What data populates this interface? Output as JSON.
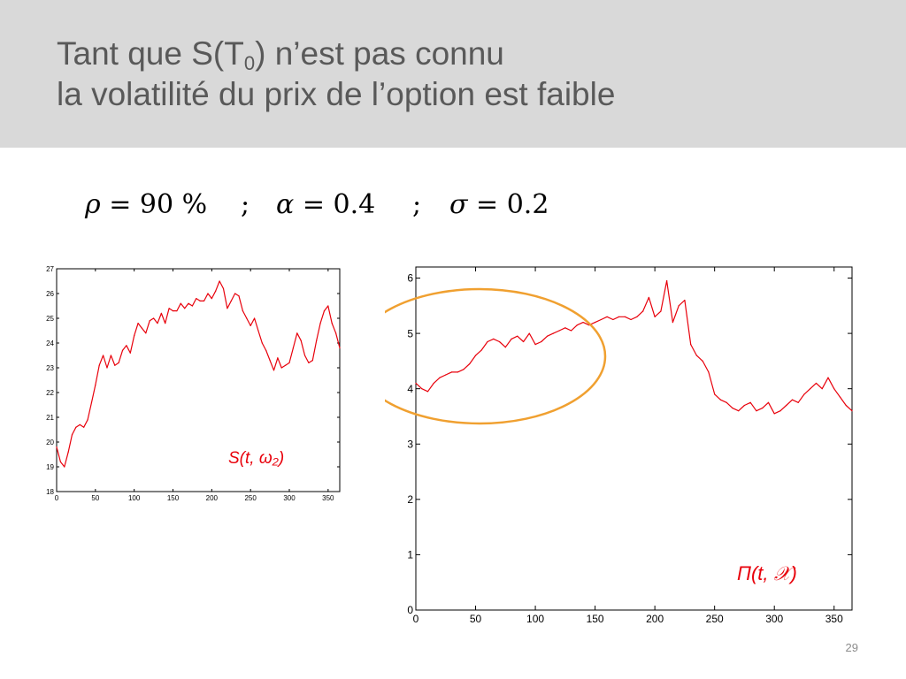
{
  "slide": {
    "title_line1_a": "Tant que S(T",
    "title_line1_sub": "0",
    "title_line1_b": ") n’est pas connu",
    "title_line2": "la volatilité du prix de l’option est faible",
    "params": {
      "rho_symbol": "ρ",
      "rho_value": "= 90 %",
      "alpha_symbol": "α",
      "alpha_value": "= 0.4",
      "sigma_symbol": "σ",
      "sigma_value": "= 0.2",
      "separator": ";"
    },
    "page_number": "29",
    "highlight_color": "#f0a030"
  },
  "chart_data": [
    {
      "type": "line",
      "annotation": "S(t, ω₂)",
      "color": "#e8000b",
      "xlim": [
        0,
        365
      ],
      "ylim": [
        18,
        27
      ],
      "xticks": [
        0,
        50,
        100,
        150,
        200,
        250,
        300,
        350
      ],
      "yticks": [
        18,
        19,
        20,
        21,
        22,
        23,
        24,
        25,
        26,
        27
      ],
      "grid": false,
      "series": [
        {
          "x": [
            0,
            5,
            10,
            15,
            20,
            25,
            30,
            35,
            40,
            45,
            50,
            55,
            60,
            65,
            70,
            75,
            80,
            85,
            90,
            95,
            100,
            105,
            110,
            115,
            120,
            125,
            130,
            135,
            140,
            145,
            150,
            155,
            160,
            165,
            170,
            175,
            180,
            185,
            190,
            195,
            200,
            205,
            210,
            215,
            220,
            225,
            230,
            235,
            240,
            245,
            250,
            255,
            260,
            265,
            270,
            275,
            280,
            285,
            290,
            295,
            300,
            305,
            310,
            315,
            320,
            325,
            330,
            335,
            340,
            345,
            350,
            355,
            360,
            365
          ],
          "y": [
            19.8,
            19.2,
            19.0,
            19.6,
            20.3,
            20.6,
            20.7,
            20.6,
            20.9,
            21.6,
            22.3,
            23.1,
            23.5,
            23.0,
            23.5,
            23.1,
            23.2,
            23.7,
            23.9,
            23.6,
            24.3,
            24.8,
            24.6,
            24.4,
            24.9,
            25.0,
            24.8,
            25.2,
            24.8,
            25.4,
            25.3,
            25.3,
            25.6,
            25.4,
            25.6,
            25.5,
            25.8,
            25.7,
            25.7,
            26.0,
            25.8,
            26.1,
            26.5,
            26.2,
            25.4,
            25.7,
            26.0,
            25.9,
            25.3,
            25.0,
            24.7,
            25.0,
            24.5,
            24.0,
            23.7,
            23.3,
            22.9,
            23.4,
            23.0,
            23.1,
            23.2,
            23.8,
            24.4,
            24.1,
            23.5,
            23.2,
            23.3,
            24.1,
            24.8,
            25.3,
            25.5,
            24.8,
            24.4,
            23.8
          ]
        }
      ]
    },
    {
      "type": "line",
      "annotation": "Π(t, 𝒳)",
      "color": "#e8000b",
      "xlim": [
        0,
        365
      ],
      "ylim": [
        0,
        6.2
      ],
      "xticks": [
        0,
        50,
        100,
        150,
        200,
        250,
        300,
        350
      ],
      "yticks": [
        0,
        1,
        2,
        3,
        4,
        5,
        6
      ],
      "grid": false,
      "series": [
        {
          "x": [
            0,
            5,
            10,
            15,
            20,
            25,
            30,
            35,
            40,
            45,
            50,
            55,
            60,
            65,
            70,
            75,
            80,
            85,
            90,
            95,
            100,
            105,
            110,
            115,
            120,
            125,
            130,
            135,
            140,
            145,
            150,
            155,
            160,
            165,
            170,
            175,
            180,
            185,
            190,
            195,
            200,
            205,
            210,
            215,
            220,
            225,
            230,
            235,
            240,
            245,
            250,
            255,
            260,
            265,
            270,
            275,
            280,
            285,
            290,
            295,
            300,
            305,
            310,
            315,
            320,
            325,
            330,
            335,
            340,
            345,
            350,
            355,
            360,
            365
          ],
          "y": [
            4.1,
            4.0,
            3.95,
            4.1,
            4.2,
            4.25,
            4.3,
            4.3,
            4.35,
            4.45,
            4.6,
            4.7,
            4.85,
            4.9,
            4.85,
            4.75,
            4.9,
            4.95,
            4.85,
            5.0,
            4.8,
            4.85,
            4.95,
            5.0,
            5.05,
            5.1,
            5.05,
            5.15,
            5.2,
            5.15,
            5.2,
            5.25,
            5.3,
            5.25,
            5.3,
            5.3,
            5.25,
            5.3,
            5.4,
            5.65,
            5.3,
            5.4,
            5.95,
            5.2,
            5.5,
            5.6,
            4.8,
            4.6,
            4.5,
            4.3,
            3.9,
            3.8,
            3.75,
            3.65,
            3.6,
            3.7,
            3.75,
            3.6,
            3.65,
            3.75,
            3.55,
            3.6,
            3.7,
            3.8,
            3.75,
            3.9,
            4.0,
            4.1,
            4.0,
            4.2,
            4.0,
            3.85,
            3.7,
            3.6
          ]
        }
      ]
    }
  ]
}
